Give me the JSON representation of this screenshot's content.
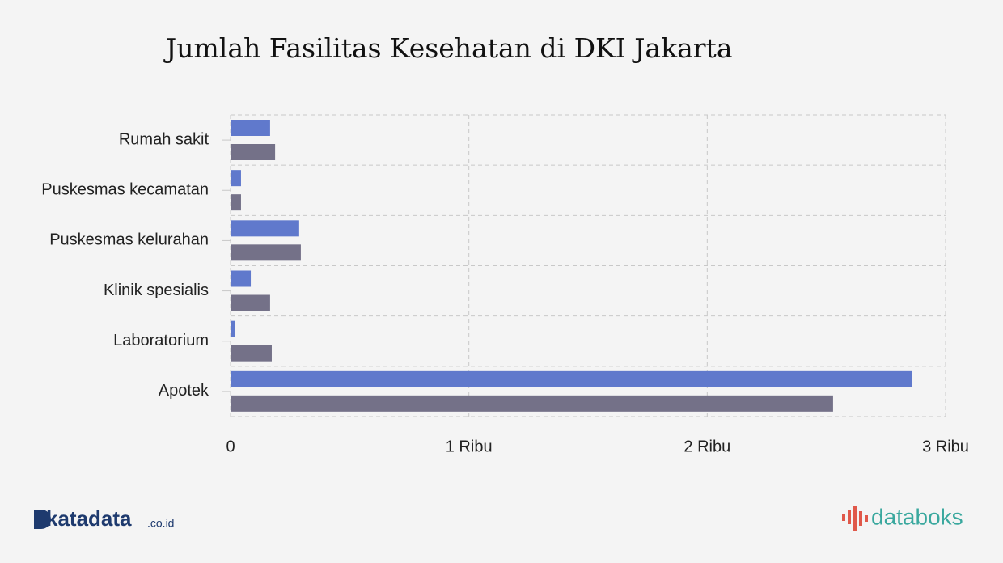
{
  "chart_data": {
    "type": "hbar",
    "title": "Jumlah Fasilitas Kesehatan di DKI Jakarta",
    "categories": [
      "Rumah sakit",
      "Puskesmas kecamatan",
      "Puskesmas kelurahan",
      "Klinik spesialis",
      "Laboratorium",
      "Apotek"
    ],
    "series": [
      {
        "color": "#6079cc",
        "values": [
          166,
          44,
          288,
          85,
          17,
          2860
        ]
      },
      {
        "color": "#747188",
        "values": [
          187,
          44,
          295,
          166,
          173,
          2528
        ]
      }
    ],
    "xlim": [
      0,
      3000
    ],
    "xticks": [
      0,
      {
        "value": 1000,
        "label": "1 Ribu"
      },
      {
        "value": 2000,
        "label": "2 Ribu"
      },
      {
        "value": 3000,
        "label": "3 Ribu"
      }
    ],
    "grid": true
  },
  "branding": {
    "left": "katadata",
    "left_suffix": ".co.id",
    "right": "databoks"
  }
}
